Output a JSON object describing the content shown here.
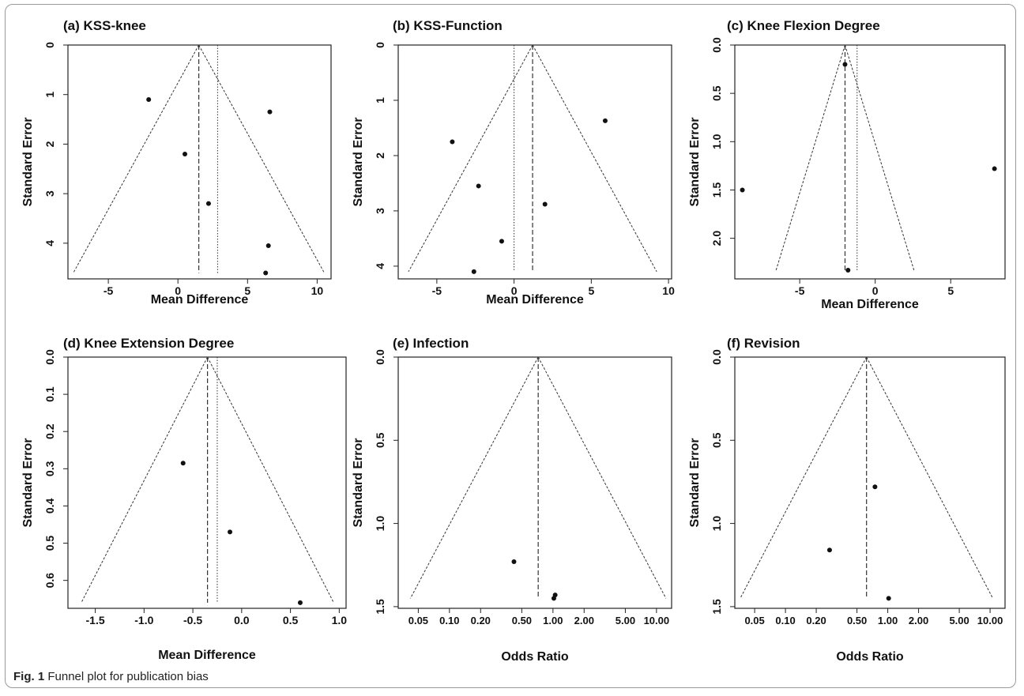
{
  "figure": {
    "caption_label": "Fig. 1",
    "caption_text": "Funnel plot for publication bias"
  },
  "chart_data": [
    {
      "type": "scatter",
      "subtype": "funnel",
      "title": "(a) KSS-knee",
      "xlabel": "Mean Difference",
      "ylabel": "Standard Error",
      "x_scale": "linear",
      "y_axis": "reversed",
      "xlim": [
        -7.9,
        11
      ],
      "ylim": [
        0,
        4.72
      ],
      "xticks": [
        -5,
        0,
        5,
        10
      ],
      "xtick_labels": [
        "-5",
        "0",
        "5",
        "10"
      ],
      "yticks": [
        0,
        1,
        2,
        3,
        4
      ],
      "ytick_labels": [
        "0",
        "1",
        "2",
        "3",
        "4"
      ],
      "pooled_estimate": 1.5,
      "reference_line": 2.85,
      "funnel_bottom_se": 4.6,
      "points": [
        {
          "x": -2.1,
          "y": 1.1
        },
        {
          "x": 6.6,
          "y": 1.35
        },
        {
          "x": 0.5,
          "y": 2.2
        },
        {
          "x": 2.2,
          "y": 3.2
        },
        {
          "x": 6.5,
          "y": 4.05
        },
        {
          "x": 6.3,
          "y": 4.6
        }
      ]
    },
    {
      "type": "scatter",
      "subtype": "funnel",
      "title": "(b) KSS-Function",
      "xlabel": "Mean Difference",
      "ylabel": "Standard Error",
      "x_scale": "linear",
      "y_axis": "reversed",
      "xlim": [
        -7.5,
        10.2
      ],
      "ylim": [
        0,
        4.23
      ],
      "xticks": [
        -5,
        0,
        5,
        10
      ],
      "xtick_labels": [
        "-5",
        "0",
        "5",
        "10"
      ],
      "yticks": [
        0,
        1,
        2,
        3,
        4
      ],
      "ytick_labels": [
        "0",
        "1",
        "2",
        "3",
        "4"
      ],
      "pooled_estimate": 1.2,
      "reference_line": 0,
      "funnel_bottom_se": 4.1,
      "points": [
        {
          "x": 5.9,
          "y": 1.37
        },
        {
          "x": -4.0,
          "y": 1.75
        },
        {
          "x": -2.3,
          "y": 2.55
        },
        {
          "x": 2.0,
          "y": 2.88
        },
        {
          "x": -0.8,
          "y": 3.55
        },
        {
          "x": -2.6,
          "y": 4.1
        }
      ]
    },
    {
      "type": "scatter",
      "subtype": "funnel",
      "title": "(c) Knee Flexion Degree",
      "xlabel": "Mean Difference",
      "ylabel": "Standard Error",
      "x_scale": "linear",
      "y_axis": "reversed",
      "xlim": [
        -9.3,
        8.6
      ],
      "ylim": [
        0,
        2.42
      ],
      "xticks": [
        -5,
        0,
        5
      ],
      "xtick_labels": [
        "-5",
        "0",
        "5"
      ],
      "yticks": [
        0,
        0.5,
        1,
        1.5,
        2
      ],
      "ytick_labels": [
        "0.0",
        "0.5",
        "1.0",
        "1.5",
        "2.0"
      ],
      "pooled_estimate": -2.0,
      "reference_line": -1.2,
      "funnel_bottom_se": 2.33,
      "points": [
        {
          "x": -2.0,
          "y": 0.2
        },
        {
          "x": 7.9,
          "y": 1.28
        },
        {
          "x": -8.8,
          "y": 1.5
        },
        {
          "x": -1.8,
          "y": 2.33
        }
      ]
    },
    {
      "type": "scatter",
      "subtype": "funnel",
      "title": "(d) Knee Extension Degree",
      "xlabel": "Mean Difference",
      "ylabel": "Standard Error",
      "x_scale": "linear",
      "y_axis": "reversed",
      "xlim": [
        -1.78,
        1.07
      ],
      "ylim": [
        0,
        0.675
      ],
      "xticks": [
        -1.5,
        -1.0,
        -0.5,
        0.0,
        0.5,
        1.0
      ],
      "xtick_labels": [
        "-1.5",
        "-1.0",
        "-0.5",
        "0.0",
        "0.5",
        "1.0"
      ],
      "yticks": [
        0,
        0.1,
        0.2,
        0.3,
        0.4,
        0.5,
        0.6
      ],
      "ytick_labels": [
        "0.0",
        "0.1",
        "0.2",
        "0.3",
        "0.4",
        "0.5",
        "0.6"
      ],
      "pooled_estimate": -0.35,
      "reference_line": -0.25,
      "funnel_bottom_se": 0.66,
      "points": [
        {
          "x": -0.6,
          "y": 0.285
        },
        {
          "x": -0.12,
          "y": 0.47
        },
        {
          "x": 0.6,
          "y": 0.66
        }
      ]
    },
    {
      "type": "scatter",
      "subtype": "funnel",
      "title": "(e) Infection",
      "xlabel": "Odds Ratio",
      "ylabel": "Standard Error",
      "x_scale": "log",
      "y_axis": "reversed",
      "xlim": [
        0.032,
        14
      ],
      "ylim": [
        0,
        1.51
      ],
      "xticks": [
        0.05,
        0.1,
        0.2,
        0.5,
        1,
        2,
        5,
        10
      ],
      "xtick_labels": [
        "0.05",
        "0.10",
        "0.20",
        "0.50",
        "1.00",
        "2.00",
        "5.00",
        "10.00"
      ],
      "yticks": [
        0,
        0.5,
        1,
        1.5
      ],
      "ytick_labels": [
        "0.0",
        "0.5",
        "1.0",
        "1.5"
      ],
      "pooled_estimate": 0.72,
      "funnel_bottom_se": 1.45,
      "points": [
        {
          "x": 0.42,
          "y": 1.23
        },
        {
          "x": 1.05,
          "y": 1.43
        },
        {
          "x": 1.02,
          "y": 1.45
        }
      ]
    },
    {
      "type": "scatter",
      "subtype": "funnel",
      "title": "(f) Revision",
      "xlabel": "Odds Ratio",
      "ylabel": "Standard Error",
      "x_scale": "log",
      "y_axis": "reversed",
      "xlim": [
        0.032,
        14
      ],
      "ylim": [
        0,
        1.51
      ],
      "xticks": [
        0.05,
        0.1,
        0.2,
        0.5,
        1,
        2,
        5,
        10
      ],
      "xtick_labels": [
        "0.05",
        "0.10",
        "0.20",
        "0.50",
        "1.00",
        "2.00",
        "5.00",
        "10.00"
      ],
      "yticks": [
        0,
        0.5,
        1,
        1.5
      ],
      "ytick_labels": [
        "0.0",
        "0.5",
        "1.0",
        "1.5"
      ],
      "pooled_estimate": 0.62,
      "funnel_bottom_se": 1.45,
      "points": [
        {
          "x": 0.75,
          "y": 0.78
        },
        {
          "x": 0.27,
          "y": 1.16
        },
        {
          "x": 1.02,
          "y": 1.45
        }
      ]
    }
  ]
}
